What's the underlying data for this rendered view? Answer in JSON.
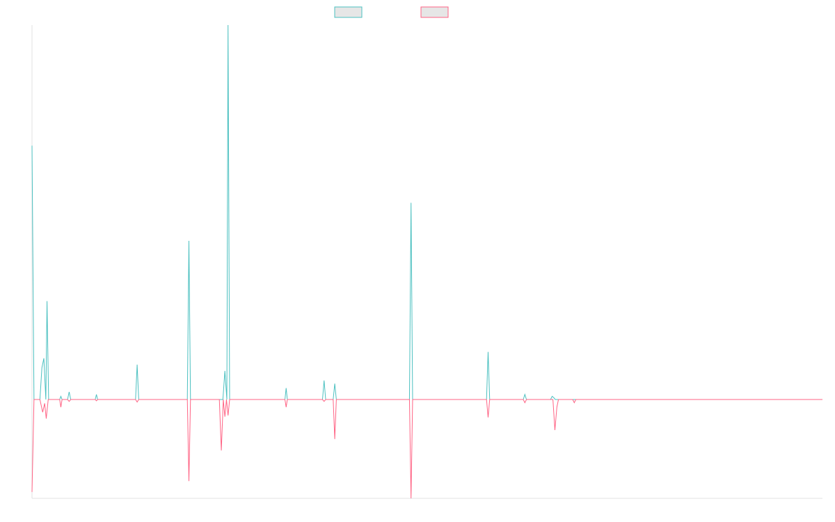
{
  "chart_data": {
    "type": "line",
    "title": "",
    "xlabel": "",
    "ylabel": "",
    "grid": false,
    "legend_position": "top-center",
    "ylim": [
      -155,
      590
    ],
    "xlim": [
      0,
      200
    ],
    "series": [
      {
        "color": "#4bc0c0",
        "fill": "#e6e6e6",
        "points": [
          [
            0,
            400
          ],
          [
            0.5,
            0
          ],
          [
            2,
            0
          ],
          [
            2.5,
            50
          ],
          [
            3,
            65
          ],
          [
            3.5,
            0
          ],
          [
            3.8,
            155
          ],
          [
            4.2,
            0
          ],
          [
            7,
            0
          ],
          [
            7.3,
            5
          ],
          [
            7.6,
            0
          ],
          [
            9,
            0
          ],
          [
            9.4,
            12
          ],
          [
            9.8,
            0
          ],
          [
            16,
            0
          ],
          [
            16.3,
            8
          ],
          [
            16.6,
            0
          ],
          [
            26.2,
            0
          ],
          [
            26.6,
            55
          ],
          [
            27,
            0
          ],
          [
            39.3,
            0
          ],
          [
            39.7,
            250
          ],
          [
            40.1,
            0
          ],
          [
            48.3,
            0
          ],
          [
            48.8,
            45
          ],
          [
            49.3,
            0
          ],
          [
            49.6,
            590
          ],
          [
            50,
            0
          ],
          [
            64,
            0
          ],
          [
            64.3,
            18
          ],
          [
            64.6,
            0
          ],
          [
            73.5,
            0
          ],
          [
            73.9,
            30
          ],
          [
            74.3,
            0
          ],
          [
            76.2,
            0
          ],
          [
            76.6,
            25
          ],
          [
            77,
            0
          ],
          [
            95.5,
            0
          ],
          [
            95.9,
            310
          ],
          [
            96.3,
            0
          ],
          [
            115,
            0
          ],
          [
            115.4,
            75
          ],
          [
            115.8,
            0
          ],
          [
            124.3,
            0
          ],
          [
            124.7,
            8
          ],
          [
            125.1,
            0
          ],
          [
            131.2,
            0
          ],
          [
            131.6,
            5
          ],
          [
            132,
            3
          ],
          [
            132.4,
            0
          ],
          [
            200,
            0
          ]
        ]
      },
      {
        "color": "#ff6384",
        "fill": "#e6e6e6",
        "points": [
          [
            0,
            -145
          ],
          [
            0.5,
            0
          ],
          [
            2,
            0
          ],
          [
            2.7,
            -20
          ],
          [
            3.2,
            -6
          ],
          [
            3.6,
            -30
          ],
          [
            4.1,
            0
          ],
          [
            7,
            0
          ],
          [
            7.3,
            -12
          ],
          [
            7.6,
            0
          ],
          [
            9,
            0
          ],
          [
            9.4,
            -3
          ],
          [
            9.8,
            0
          ],
          [
            16,
            0
          ],
          [
            16.3,
            -2
          ],
          [
            16.6,
            0
          ],
          [
            26.2,
            0
          ],
          [
            26.6,
            -4
          ],
          [
            27,
            0
          ],
          [
            39.3,
            0
          ],
          [
            39.7,
            -128
          ],
          [
            40.1,
            0
          ],
          [
            47.4,
            0
          ],
          [
            47.9,
            -80
          ],
          [
            48.4,
            0
          ],
          [
            48.8,
            -27
          ],
          [
            49.2,
            0
          ],
          [
            49.6,
            -25
          ],
          [
            50,
            0
          ],
          [
            64,
            0
          ],
          [
            64.3,
            -12
          ],
          [
            64.6,
            0
          ],
          [
            73.5,
            0
          ],
          [
            73.9,
            -3
          ],
          [
            74.3,
            0
          ],
          [
            76.2,
            0
          ],
          [
            76.6,
            -62
          ],
          [
            77,
            0
          ],
          [
            95.5,
            0
          ],
          [
            95.9,
            -155
          ],
          [
            96.3,
            0
          ],
          [
            115,
            0
          ],
          [
            115.4,
            -28
          ],
          [
            115.8,
            0
          ],
          [
            124.3,
            0
          ],
          [
            124.7,
            -5
          ],
          [
            125.1,
            0
          ],
          [
            131.8,
            0
          ],
          [
            132.3,
            -48
          ],
          [
            132.8,
            -12
          ],
          [
            133.2,
            0
          ],
          [
            136.8,
            0
          ],
          [
            137.2,
            -5
          ],
          [
            137.6,
            0
          ],
          [
            200,
            0
          ]
        ]
      }
    ]
  }
}
